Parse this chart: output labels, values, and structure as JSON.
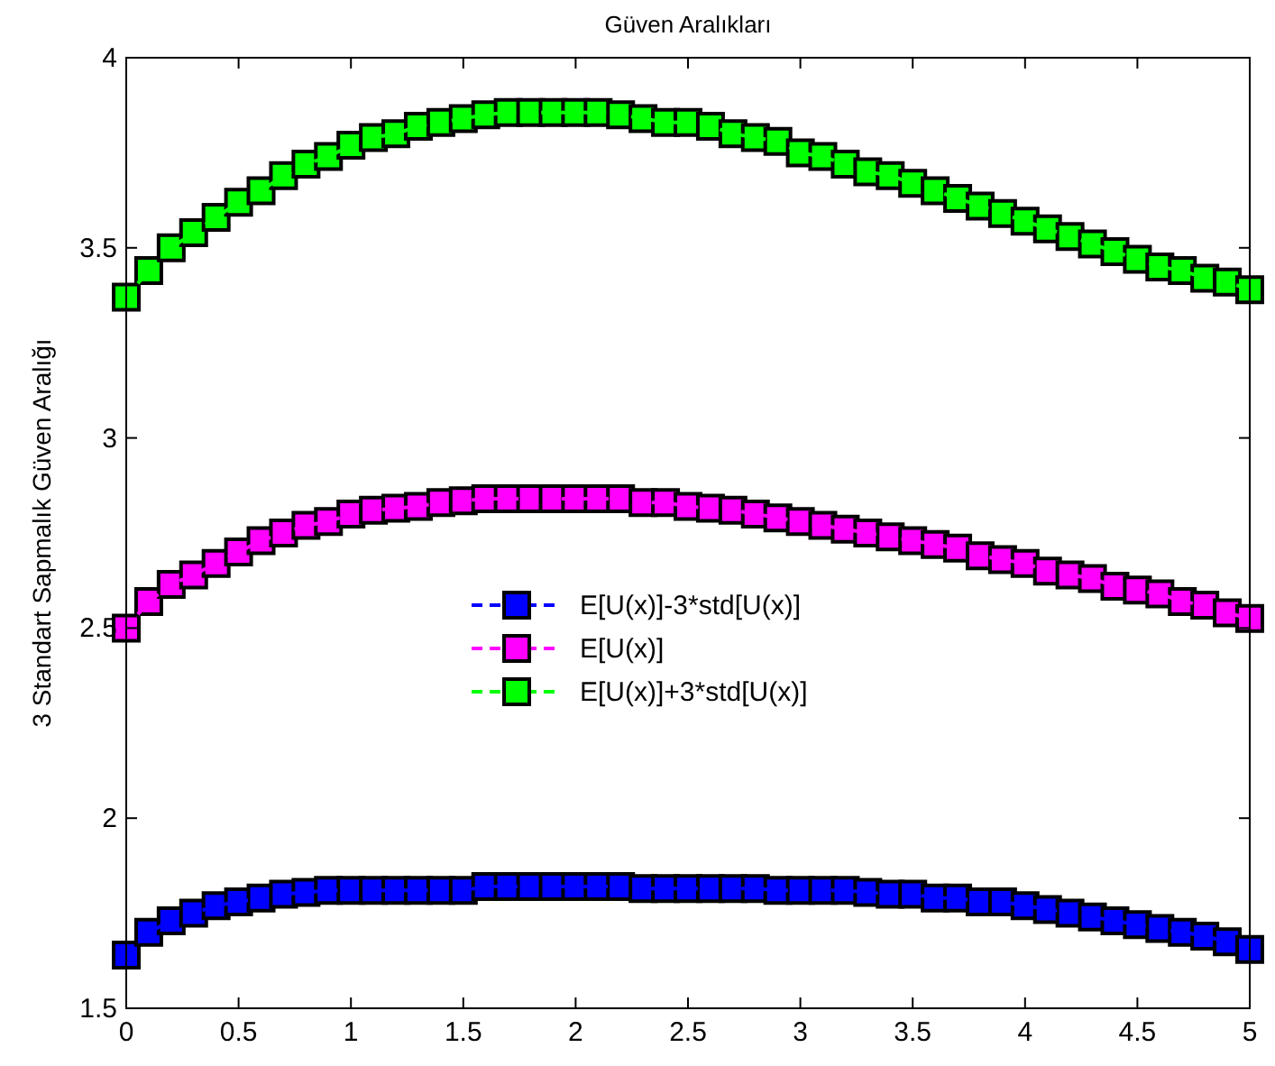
{
  "chart_data": {
    "type": "line",
    "title": "Güven Aralıkları",
    "ylabel": "3 Standart Sapmalık Güven Aralığı",
    "x": [
      0,
      0.1,
      0.2,
      0.3,
      0.4,
      0.5,
      0.6,
      0.7,
      0.8,
      0.9,
      1,
      1.1,
      1.2,
      1.3,
      1.4,
      1.5,
      1.6,
      1.7,
      1.8,
      1.9,
      2,
      2.1,
      2.2,
      2.3,
      2.4,
      2.5,
      2.6,
      2.7,
      2.8,
      2.9,
      3,
      3.1,
      3.2,
      3.3,
      3.4,
      3.5,
      3.6,
      3.7,
      3.8,
      3.9,
      4,
      4.1,
      4.2,
      4.3,
      4.4,
      4.5,
      4.6,
      4.7,
      4.8,
      4.9,
      5
    ],
    "series": [
      {
        "name": "E[U(x)]-3*std[U(x)]",
        "color": "#0000ff",
        "values": [
          1.64,
          1.7,
          1.73,
          1.75,
          1.77,
          1.78,
          1.79,
          1.8,
          1.805,
          1.81,
          1.81,
          1.81,
          1.81,
          1.81,
          1.81,
          1.81,
          1.82,
          1.82,
          1.82,
          1.82,
          1.82,
          1.82,
          1.82,
          1.815,
          1.815,
          1.815,
          1.815,
          1.815,
          1.815,
          1.81,
          1.81,
          1.81,
          1.81,
          1.805,
          1.8,
          1.8,
          1.79,
          1.79,
          1.78,
          1.78,
          1.77,
          1.76,
          1.75,
          1.74,
          1.73,
          1.72,
          1.71,
          1.7,
          1.69,
          1.675,
          1.655
        ]
      },
      {
        "name": "E[U(x)]",
        "color": "#ff00ff",
        "values": [
          2.5,
          2.57,
          2.615,
          2.64,
          2.67,
          2.7,
          2.73,
          2.75,
          2.77,
          2.78,
          2.8,
          2.81,
          2.815,
          2.82,
          2.83,
          2.835,
          2.84,
          2.84,
          2.84,
          2.84,
          2.84,
          2.84,
          2.84,
          2.83,
          2.83,
          2.82,
          2.815,
          2.81,
          2.8,
          2.79,
          2.78,
          2.77,
          2.76,
          2.75,
          2.74,
          2.73,
          2.72,
          2.71,
          2.69,
          2.68,
          2.67,
          2.65,
          2.64,
          2.63,
          2.61,
          2.6,
          2.59,
          2.57,
          2.56,
          2.54,
          2.525
        ]
      },
      {
        "name": "E[U(x)]+3*std[U(x)]",
        "color": "#00ff00",
        "values": [
          3.37,
          3.44,
          3.5,
          3.54,
          3.58,
          3.62,
          3.65,
          3.69,
          3.72,
          3.74,
          3.77,
          3.79,
          3.8,
          3.82,
          3.83,
          3.84,
          3.85,
          3.856,
          3.856,
          3.856,
          3.856,
          3.856,
          3.85,
          3.84,
          3.83,
          3.83,
          3.82,
          3.8,
          3.79,
          3.78,
          3.75,
          3.74,
          3.72,
          3.7,
          3.69,
          3.67,
          3.65,
          3.63,
          3.61,
          3.59,
          3.57,
          3.55,
          3.53,
          3.51,
          3.49,
          3.47,
          3.45,
          3.44,
          3.42,
          3.41,
          3.39
        ]
      }
    ],
    "xlim": [
      0,
      5
    ],
    "xticks": [
      0,
      0.5,
      1,
      1.5,
      2,
      2.5,
      3,
      3.5,
      4,
      4.5,
      5
    ],
    "ylim": [
      1.5,
      4
    ],
    "yticks": [
      1.5,
      2,
      2.5,
      3,
      3.5,
      4
    ],
    "grid": false,
    "legend": "center",
    "marker": "square",
    "line_style": "dashed"
  }
}
